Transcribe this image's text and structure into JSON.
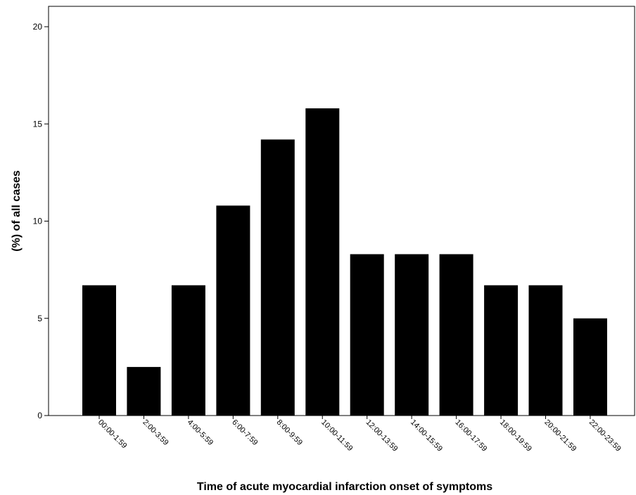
{
  "chart_data": {
    "type": "bar",
    "title": "",
    "xlabel": "Time of acute myocardial infarction onset of symptoms",
    "ylabel": "(%) of all cases",
    "categories": [
      "00:00-1:59",
      "2:00-3:59",
      "4:00-5:59",
      "6:00-7:59",
      "8:00-9:59",
      "10:00-11:59",
      "12:00-13:59",
      "14:00-15:59",
      "16:00-17:59",
      "18:00-19:59",
      "20:00-21:59",
      "22:00-23:59"
    ],
    "values": [
      6.7,
      2.5,
      6.7,
      10.8,
      14.2,
      15.8,
      8.3,
      8.3,
      8.3,
      6.7,
      6.7,
      5.0
    ],
    "yticks": [
      0,
      5,
      10,
      15,
      20
    ],
    "ylim": [
      0,
      21
    ],
    "grid": false,
    "bar_color": "#000000"
  }
}
